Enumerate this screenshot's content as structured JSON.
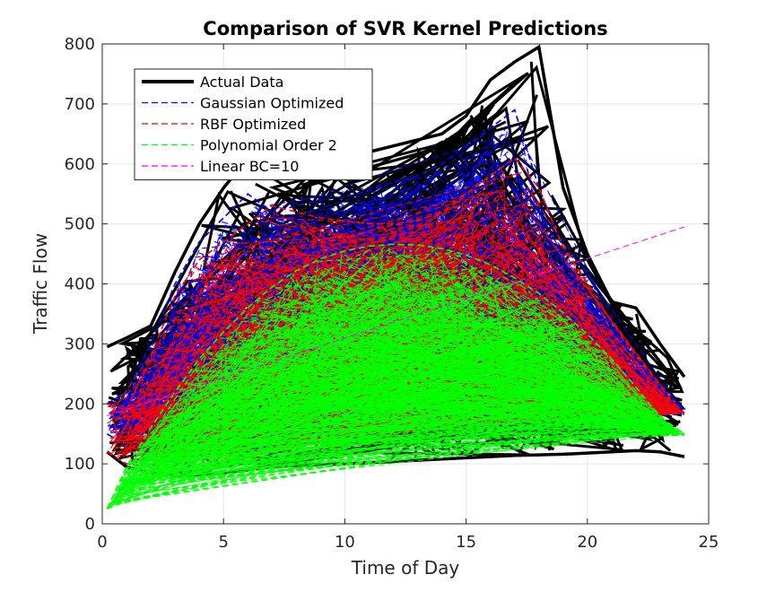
{
  "chart_data": {
    "type": "line",
    "title": "Comparison of SVR Kernel Predictions",
    "xlabel": "Time of Day",
    "ylabel": "Traffic Flow",
    "xlim": [
      0,
      25
    ],
    "ylim": [
      0,
      800
    ],
    "xticks": [
      0,
      5,
      10,
      15,
      20,
      25
    ],
    "yticks": [
      0,
      100,
      200,
      300,
      400,
      500,
      600,
      700,
      800
    ],
    "xtick_labels": [
      "0",
      "5",
      "10",
      "15",
      "20",
      "25"
    ],
    "ytick_labels": [
      "0",
      "100",
      "200",
      "300",
      "400",
      "500",
      "600",
      "700",
      "800"
    ],
    "grid": true,
    "legend_position": "top-left",
    "series": [
      {
        "name": "Actual Data",
        "color": "#000000",
        "style": "solid",
        "x": [
          0.2,
          1.0,
          2.0,
          3.0,
          4.0,
          5.0,
          6.0,
          7.0,
          8.0,
          9.0,
          10.0,
          11.0,
          12.0,
          13.0,
          14.0,
          15.0,
          16.0,
          17.0,
          18.0,
          19.0,
          20.0,
          21.0,
          22.0,
          23.0,
          24.0
        ],
        "y_upper": [
          295,
          310,
          330,
          420,
          500,
          560,
          610,
          575,
          585,
          600,
          610,
          620,
          630,
          640,
          650,
          680,
          740,
          770,
          795,
          560,
          450,
          370,
          360,
          300,
          245
        ],
        "y_lower": [
          120,
          95,
          85,
          80,
          82,
          85,
          90,
          95,
          97,
          99,
          100,
          102,
          104,
          106,
          108,
          110,
          112,
          114,
          115,
          116,
          118,
          120,
          122,
          120,
          112
        ]
      },
      {
        "name": "Gaussian Optimized",
        "color": "#0000ff",
        "style": "dashed",
        "x": [
          0.2,
          1.0,
          2.0,
          3.0,
          4.0,
          5.0,
          6.0,
          7.0,
          8.0,
          9.0,
          10.0,
          11.0,
          12.0,
          13.0,
          14.0,
          15.0,
          16.0,
          17.0,
          18.0,
          19.0,
          20.0,
          21.0,
          22.0,
          23.0,
          24.0
        ],
        "y_upper": [
          200,
          220,
          300,
          400,
          470,
          510,
          550,
          520,
          530,
          540,
          545,
          555,
          570,
          580,
          600,
          630,
          660,
          690,
          560,
          460,
          420,
          330,
          280,
          230,
          190
        ],
        "y_lower": [
          150,
          130,
          120,
          115,
          118,
          120,
          125,
          130,
          135,
          140,
          145,
          150,
          155,
          160,
          165,
          170,
          172,
          175,
          176,
          178,
          179,
          180,
          181,
          182,
          183
        ]
      },
      {
        "name": "RBF Optimized",
        "color": "#ff0000",
        "style": "dashed",
        "x": [
          0.2,
          1.0,
          2.0,
          3.0,
          4.0,
          5.0,
          6.0,
          7.0,
          8.0,
          9.0,
          10.0,
          11.0,
          12.0,
          13.0,
          14.0,
          15.0,
          16.0,
          17.0,
          18.0,
          19.0,
          20.0,
          21.0,
          22.0,
          23.0,
          24.0
        ],
        "y_upper": [
          200,
          190,
          280,
          380,
          440,
          470,
          500,
          530,
          520,
          510,
          505,
          500,
          500,
          505,
          520,
          550,
          580,
          610,
          560,
          460,
          400,
          320,
          270,
          220,
          185
        ],
        "y_lower": [
          120,
          100,
          95,
          92,
          95,
          100,
          110,
          120,
          128,
          135,
          140,
          145,
          150,
          155,
          160,
          164,
          168,
          172,
          174,
          176,
          178,
          179,
          180,
          182,
          185
        ]
      },
      {
        "name": "Polynomial Order 2",
        "color": "#00ff00",
        "style": "dashed",
        "x": [
          0.2,
          1.0,
          2.0,
          3.0,
          4.0,
          5.0,
          6.0,
          7.0,
          8.0,
          9.0,
          10.0,
          11.0,
          12.0,
          13.0,
          14.0,
          15.0,
          16.0,
          17.0,
          18.0,
          19.0,
          20.0,
          21.0,
          22.0,
          23.0,
          24.0
        ],
        "y_upper": [
          25,
          95,
          160,
          220,
          275,
          320,
          360,
          395,
          422,
          442,
          455,
          463,
          466,
          465,
          459,
          448,
          432,
          410,
          384,
          352,
          316,
          275,
          228,
          178,
          150
        ],
        "y_lower": [
          25,
          40,
          55,
          65,
          72,
          80,
          88,
          95,
          100,
          105,
          110,
          115,
          120,
          124,
          128,
          132,
          135,
          138,
          140,
          142,
          144,
          145,
          146,
          147,
          148
        ]
      },
      {
        "name": "Linear BC=10",
        "color": "#ff00ff",
        "style": "dashed",
        "x": [
          0.2,
          24.0
        ],
        "y": [
          180,
          495
        ]
      }
    ]
  }
}
